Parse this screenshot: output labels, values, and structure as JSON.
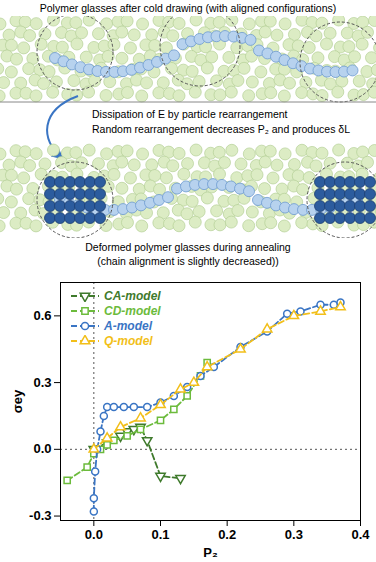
{
  "diagram": {
    "top_caption": "Polymer glasses after cold drawing (with aligned configurations)",
    "arrow_texts": [
      "Dissipation of E by particle rearrangement",
      "Random rearrangement decreases P₂ and produces δL"
    ],
    "bottom_caption": [
      "Deformed polymer glasses during annealing",
      "(chain alignment is slightly decreased))"
    ]
  },
  "chart_data": {
    "type": "line",
    "xlabel": "P₂",
    "ylabel": "σey",
    "xlim": [
      -0.05,
      0.4
    ],
    "ylim": [
      -0.32,
      0.75
    ],
    "xticks": [
      {
        "value": 0,
        "label": "0.0"
      },
      0.1,
      0.2,
      0.3,
      0.4
    ],
    "yticks": [
      -0.3,
      {
        "value": 0,
        "label": "0.0"
      },
      0.3,
      0.6
    ],
    "legend": "upper left",
    "series": [
      {
        "name": "CA-model",
        "color": "#3f7a2c",
        "marker": "triangle-down",
        "line_style": "dashed",
        "x": [
          0.0,
          0.02,
          0.04,
          0.05,
          0.06,
          0.07,
          0.08,
          0.1,
          0.13
        ],
        "values": [
          0.0,
          0.03,
          0.06,
          0.08,
          0.09,
          0.1,
          0.04,
          -0.12,
          -0.13
        ]
      },
      {
        "name": "CD-model",
        "color": "#6cbb3c",
        "marker": "square",
        "line_style": "dashed",
        "x": [
          -0.04,
          -0.01,
          0.0,
          0.01,
          0.02,
          0.03,
          0.05,
          0.07,
          0.1,
          0.12,
          0.14,
          0.16,
          0.17
        ],
        "values": [
          -0.14,
          -0.08,
          -0.02,
          0.0,
          0.02,
          0.04,
          0.06,
          0.09,
          0.13,
          0.18,
          0.24,
          0.33,
          0.39
        ]
      },
      {
        "name": "A-model",
        "color": "#3a75c4",
        "marker": "circle",
        "line_style": "dashed",
        "x": [
          0.0,
          0.0,
          0.002,
          0.005,
          0.01,
          0.015,
          0.02,
          0.03,
          0.045,
          0.06,
          0.08,
          0.1,
          0.12,
          0.14,
          0.16,
          0.18,
          0.22,
          0.26,
          0.29,
          0.31,
          0.34,
          0.36,
          0.37
        ],
        "values": [
          -0.28,
          -0.22,
          -0.1,
          0.0,
          0.08,
          0.15,
          0.19,
          0.19,
          0.19,
          0.19,
          0.19,
          0.21,
          0.24,
          0.28,
          0.33,
          0.37,
          0.46,
          0.53,
          0.61,
          0.62,
          0.65,
          0.65,
          0.66
        ]
      },
      {
        "name": "Q-model",
        "color": "#f2bf1a",
        "marker": "triangle",
        "line_style": "dashed",
        "x": [
          0.0,
          0.02,
          0.04,
          0.07,
          0.1,
          0.13,
          0.15,
          0.17,
          0.22,
          0.26,
          0.3,
          0.34,
          0.37
        ],
        "values": [
          0.0,
          0.05,
          0.1,
          0.14,
          0.2,
          0.27,
          0.3,
          0.37,
          0.45,
          0.54,
          0.6,
          0.62,
          0.64
        ]
      }
    ]
  }
}
